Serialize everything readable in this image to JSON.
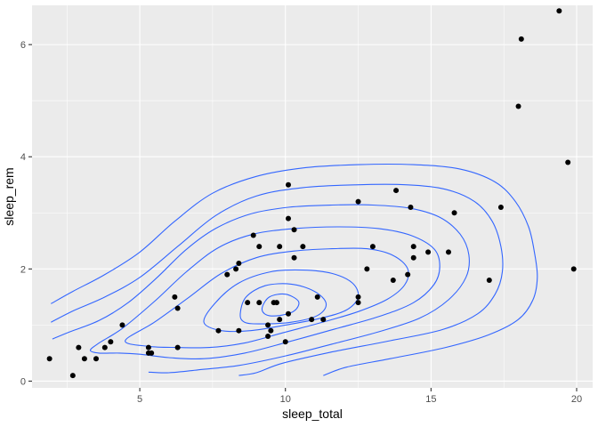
{
  "chart_data": {
    "type": "scatter",
    "xlabel": "sleep_total",
    "ylabel": "sleep_rem",
    "xlim": [
      1.3,
      20.55
    ],
    "ylim": [
      -0.12,
      6.7
    ],
    "x_ticks": [
      5,
      10,
      15,
      20
    ],
    "y_ticks": [
      0,
      2,
      4,
      6
    ],
    "x_tick_labels": [
      "5",
      "10",
      "15",
      "20"
    ],
    "y_tick_labels": [
      "0",
      "2",
      "4",
      "6"
    ],
    "grid": true,
    "legend": "none",
    "colors": {
      "panel": "#EBEBEB",
      "grid": "#FFFFFF",
      "points": "#000000",
      "contours": "#3366FF"
    },
    "points": [
      {
        "x": 1.9,
        "y": 0.4
      },
      {
        "x": 2.7,
        "y": 0.1
      },
      {
        "x": 2.9,
        "y": 0.6
      },
      {
        "x": 3.1,
        "y": 0.4
      },
      {
        "x": 3.5,
        "y": 0.4
      },
      {
        "x": 3.8,
        "y": 0.6
      },
      {
        "x": 4.0,
        "y": 0.7
      },
      {
        "x": 4.4,
        "y": 1.0
      },
      {
        "x": 5.3,
        "y": 0.6
      },
      {
        "x": 5.3,
        "y": 0.5
      },
      {
        "x": 5.4,
        "y": 0.5
      },
      {
        "x": 6.2,
        "y": 1.5
      },
      {
        "x": 6.3,
        "y": 1.3
      },
      {
        "x": 6.3,
        "y": 0.6
      },
      {
        "x": 7.7,
        "y": 0.9
      },
      {
        "x": 8.0,
        "y": 1.9
      },
      {
        "x": 8.3,
        "y": 2.0
      },
      {
        "x": 8.4,
        "y": 2.1
      },
      {
        "x": 8.4,
        "y": 0.9
      },
      {
        "x": 8.7,
        "y": 1.4
      },
      {
        "x": 8.9,
        "y": 2.6
      },
      {
        "x": 9.1,
        "y": 1.4
      },
      {
        "x": 9.1,
        "y": 2.4
      },
      {
        "x": 9.4,
        "y": 1.0
      },
      {
        "x": 9.4,
        "y": 0.8
      },
      {
        "x": 9.5,
        "y": 0.9
      },
      {
        "x": 9.6,
        "y": 1.4
      },
      {
        "x": 9.7,
        "y": 1.4
      },
      {
        "x": 9.8,
        "y": 1.1
      },
      {
        "x": 9.8,
        "y": 2.4
      },
      {
        "x": 10.0,
        "y": 0.7
      },
      {
        "x": 10.1,
        "y": 1.2
      },
      {
        "x": 10.1,
        "y": 2.9
      },
      {
        "x": 10.1,
        "y": 3.5
      },
      {
        "x": 10.3,
        "y": 2.7
      },
      {
        "x": 10.3,
        "y": 2.2
      },
      {
        "x": 10.6,
        "y": 2.4
      },
      {
        "x": 10.9,
        "y": 1.1
      },
      {
        "x": 11.1,
        "y": 1.5
      },
      {
        "x": 11.3,
        "y": 1.1
      },
      {
        "x": 12.5,
        "y": 3.2
      },
      {
        "x": 12.5,
        "y": 1.5
      },
      {
        "x": 12.5,
        "y": 1.4
      },
      {
        "x": 12.8,
        "y": 2.0
      },
      {
        "x": 13.0,
        "y": 2.4
      },
      {
        "x": 13.7,
        "y": 1.8
      },
      {
        "x": 13.8,
        "y": 3.4
      },
      {
        "x": 14.2,
        "y": 1.9
      },
      {
        "x": 14.3,
        "y": 3.1
      },
      {
        "x": 14.4,
        "y": 2.2
      },
      {
        "x": 14.4,
        "y": 2.4
      },
      {
        "x": 14.9,
        "y": 2.3
      },
      {
        "x": 15.6,
        "y": 2.3
      },
      {
        "x": 15.8,
        "y": 3.0
      },
      {
        "x": 17.0,
        "y": 1.8
      },
      {
        "x": 17.4,
        "y": 3.1
      },
      {
        "x": 18.0,
        "y": 4.9
      },
      {
        "x": 18.1,
        "y": 6.1
      },
      {
        "x": 19.4,
        "y": 6.6
      },
      {
        "x": 19.7,
        "y": 3.9
      },
      {
        "x": 19.9,
        "y": 2.0
      }
    ],
    "contours": [
      {
        "level": 1,
        "closed": false,
        "points": [
          [
            1.95,
            1.38
          ],
          [
            2.7,
            1.6
          ],
          [
            3.8,
            1.9
          ],
          [
            5.0,
            2.3
          ],
          [
            6.2,
            2.85
          ],
          [
            7.5,
            3.35
          ],
          [
            9.0,
            3.65
          ],
          [
            10.6,
            3.8
          ],
          [
            12.5,
            3.86
          ],
          [
            14.4,
            3.86
          ],
          [
            16.0,
            3.78
          ],
          [
            17.2,
            3.55
          ],
          [
            17.9,
            3.2
          ],
          [
            18.35,
            2.75
          ],
          [
            18.55,
            2.3
          ],
          [
            18.65,
            1.85
          ],
          [
            18.5,
            1.45
          ],
          [
            18.0,
            1.1
          ],
          [
            17.0,
            0.83
          ],
          [
            15.5,
            0.6
          ],
          [
            13.6,
            0.4
          ],
          [
            12.1,
            0.25
          ],
          [
            11.3,
            0.1
          ]
        ]
      },
      {
        "level": 2,
        "closed": false,
        "points": [
          [
            1.95,
            1.05
          ],
          [
            2.7,
            1.25
          ],
          [
            3.8,
            1.5
          ],
          [
            5.0,
            1.85
          ],
          [
            6.3,
            2.4
          ],
          [
            7.6,
            2.95
          ],
          [
            9.0,
            3.3
          ],
          [
            10.6,
            3.45
          ],
          [
            12.4,
            3.5
          ],
          [
            14.2,
            3.5
          ],
          [
            15.5,
            3.42
          ],
          [
            16.5,
            3.2
          ],
          [
            17.1,
            2.85
          ],
          [
            17.4,
            2.4
          ],
          [
            17.45,
            1.95
          ],
          [
            17.2,
            1.55
          ],
          [
            16.6,
            1.2
          ],
          [
            15.4,
            0.92
          ],
          [
            13.6,
            0.72
          ],
          [
            11.6,
            0.52
          ],
          [
            9.9,
            0.32
          ],
          [
            9.0,
            0.15
          ],
          [
            8.4,
            0.1
          ]
        ]
      },
      {
        "level": 3,
        "closed": false,
        "points": [
          [
            2.0,
            0.75
          ],
          [
            2.6,
            0.88
          ],
          [
            3.6,
            1.08
          ],
          [
            4.6,
            1.4
          ],
          [
            5.6,
            1.85
          ],
          [
            6.6,
            2.35
          ],
          [
            7.6,
            2.72
          ],
          [
            8.8,
            2.98
          ],
          [
            10.1,
            3.1
          ],
          [
            11.6,
            3.14
          ],
          [
            13.0,
            3.14
          ],
          [
            14.3,
            3.08
          ],
          [
            15.3,
            2.92
          ],
          [
            16.0,
            2.62
          ],
          [
            16.3,
            2.25
          ],
          [
            16.2,
            1.85
          ],
          [
            15.6,
            1.45
          ],
          [
            14.6,
            1.12
          ],
          [
            13.2,
            0.88
          ],
          [
            11.6,
            0.66
          ],
          [
            10.0,
            0.45
          ],
          [
            8.4,
            0.28
          ],
          [
            7.0,
            0.2
          ],
          [
            6.0,
            0.15
          ],
          [
            5.3,
            0.16
          ]
        ]
      },
      {
        "level": 4,
        "closed": true,
        "points": [
          [
            3.3,
            0.55
          ],
          [
            3.6,
            0.68
          ],
          [
            4.4,
            0.94
          ],
          [
            5.5,
            1.42
          ],
          [
            6.6,
            1.95
          ],
          [
            7.7,
            2.38
          ],
          [
            8.9,
            2.62
          ],
          [
            10.3,
            2.72
          ],
          [
            11.8,
            2.75
          ],
          [
            13.2,
            2.72
          ],
          [
            14.3,
            2.6
          ],
          [
            15.1,
            2.36
          ],
          [
            15.3,
            2.05
          ],
          [
            15.1,
            1.72
          ],
          [
            14.4,
            1.4
          ],
          [
            13.2,
            1.15
          ],
          [
            11.7,
            0.93
          ],
          [
            10.1,
            0.7
          ],
          [
            8.6,
            0.5
          ],
          [
            7.2,
            0.4
          ],
          [
            6.0,
            0.42
          ],
          [
            5.0,
            0.48
          ],
          [
            4.3,
            0.5
          ],
          [
            3.6,
            0.5
          ]
        ]
      },
      {
        "level": 5,
        "closed": true,
        "points": [
          [
            4.5,
            0.72
          ],
          [
            5.5,
            1.05
          ],
          [
            6.7,
            1.5
          ],
          [
            7.8,
            1.92
          ],
          [
            9.0,
            2.2
          ],
          [
            10.3,
            2.32
          ],
          [
            11.6,
            2.36
          ],
          [
            12.8,
            2.36
          ],
          [
            13.7,
            2.24
          ],
          [
            14.2,
            2.0
          ],
          [
            14.1,
            1.72
          ],
          [
            13.5,
            1.46
          ],
          [
            12.5,
            1.24
          ],
          [
            11.2,
            1.04
          ],
          [
            9.9,
            0.86
          ],
          [
            8.6,
            0.68
          ],
          [
            7.4,
            0.6
          ],
          [
            6.3,
            0.6
          ],
          [
            5.3,
            0.62
          ]
        ]
      },
      {
        "level": 6,
        "closed": true,
        "points": [
          [
            7.2,
            1.05
          ],
          [
            7.6,
            1.4
          ],
          [
            8.4,
            1.75
          ],
          [
            9.5,
            1.95
          ],
          [
            10.6,
            1.98
          ],
          [
            11.6,
            1.92
          ],
          [
            12.3,
            1.75
          ],
          [
            12.5,
            1.5
          ],
          [
            12.1,
            1.27
          ],
          [
            11.2,
            1.12
          ],
          [
            10.0,
            1.0
          ],
          [
            8.8,
            0.9
          ],
          [
            7.8,
            0.9
          ]
        ]
      },
      {
        "level": 7,
        "closed": true,
        "points": [
          [
            8.45,
            1.2
          ],
          [
            8.65,
            1.5
          ],
          [
            9.3,
            1.7
          ],
          [
            10.2,
            1.73
          ],
          [
            11.0,
            1.6
          ],
          [
            11.4,
            1.38
          ],
          [
            11.1,
            1.17
          ],
          [
            10.2,
            1.05
          ],
          [
            9.2,
            1.02
          ],
          [
            8.6,
            1.05
          ]
        ]
      },
      {
        "level": 8,
        "closed": true,
        "points": [
          [
            9.2,
            1.3
          ],
          [
            9.45,
            1.5
          ],
          [
            10.0,
            1.55
          ],
          [
            10.45,
            1.42
          ],
          [
            10.3,
            1.25
          ],
          [
            9.8,
            1.17
          ],
          [
            9.35,
            1.18
          ]
        ]
      }
    ]
  }
}
